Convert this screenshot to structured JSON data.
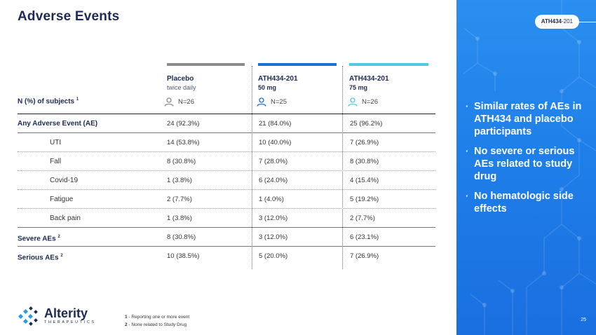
{
  "title": "Adverse Events",
  "tag": {
    "bold": "ATH434",
    "rest": "-201"
  },
  "columns": [
    {
      "name": "Placebo",
      "detail": "twice daily",
      "n": "N=26",
      "color": "#8c8c8c"
    },
    {
      "name": "ATH434-201",
      "detail": "50 mg",
      "n": "N=25",
      "color": "#1a6fd4"
    },
    {
      "name": "ATH434-201",
      "detail": "75 mg",
      "n": "N=26",
      "color": "#4ecbe0"
    }
  ],
  "n_label": "N (%) of subjects",
  "n_label_sup": "1",
  "rows": [
    {
      "label": "Any Adverse Event (AE)",
      "sup": "",
      "style": "bold",
      "values": [
        "24 (92.3%)",
        "21 (84.0%)",
        "25 (96.2%)"
      ]
    },
    {
      "label": "UTI",
      "sup": "",
      "style": "sub",
      "values": [
        "14 (53.8%)",
        "10 (40.0%)",
        "7 (26.9%)"
      ]
    },
    {
      "label": "Fall",
      "sup": "",
      "style": "sub",
      "values": [
        "8 (30.8%)",
        "7 (28.0%)",
        "8 (30.8%)"
      ]
    },
    {
      "label": "Covid-19",
      "sup": "",
      "style": "sub",
      "values": [
        "1 (3.8%)",
        "6 (24.0%)",
        "4 (15.4%)"
      ]
    },
    {
      "label": "Fatigue",
      "sup": "",
      "style": "sub",
      "values": [
        "2 (7.7%)",
        "1 (4.0%)",
        "5 (19.2%)"
      ]
    },
    {
      "label": "Back pain",
      "sup": "",
      "style": "sub",
      "values": [
        "1 (3.8%)",
        "3 (12.0%)",
        "2 (7.7%)"
      ]
    },
    {
      "label": "Severe AEs",
      "sup": "2",
      "style": "bold",
      "values": [
        "8 (30.8%)",
        "3 (12.0%)",
        "6 (23.1%)"
      ]
    },
    {
      "label": "Serious AEs",
      "sup": "2",
      "style": "bold",
      "values": [
        "10 (38.5%)",
        "5 (20.0%)",
        "7 (26.9%)"
      ]
    }
  ],
  "bullets": [
    "Similar rates of AEs in ATH434 and placebo participants",
    "No severe or serious AEs related to study drug",
    "No hematologic side effects"
  ],
  "footnotes": [
    {
      "num": "1",
      "text": " - Reporting one or more event"
    },
    {
      "num": "2",
      "text": " - None related to Study Drug"
    }
  ],
  "logo": {
    "name": "Alterity",
    "sub": "THERAPEUTICS"
  },
  "page_number": "25",
  "colors": {
    "navy": "#1c2a55",
    "panel_blue": "#1f7fe9",
    "placebo_bar": "#8c8c8c",
    "dose50_bar": "#1a6fd4",
    "dose75_bar": "#4ecbe0"
  }
}
